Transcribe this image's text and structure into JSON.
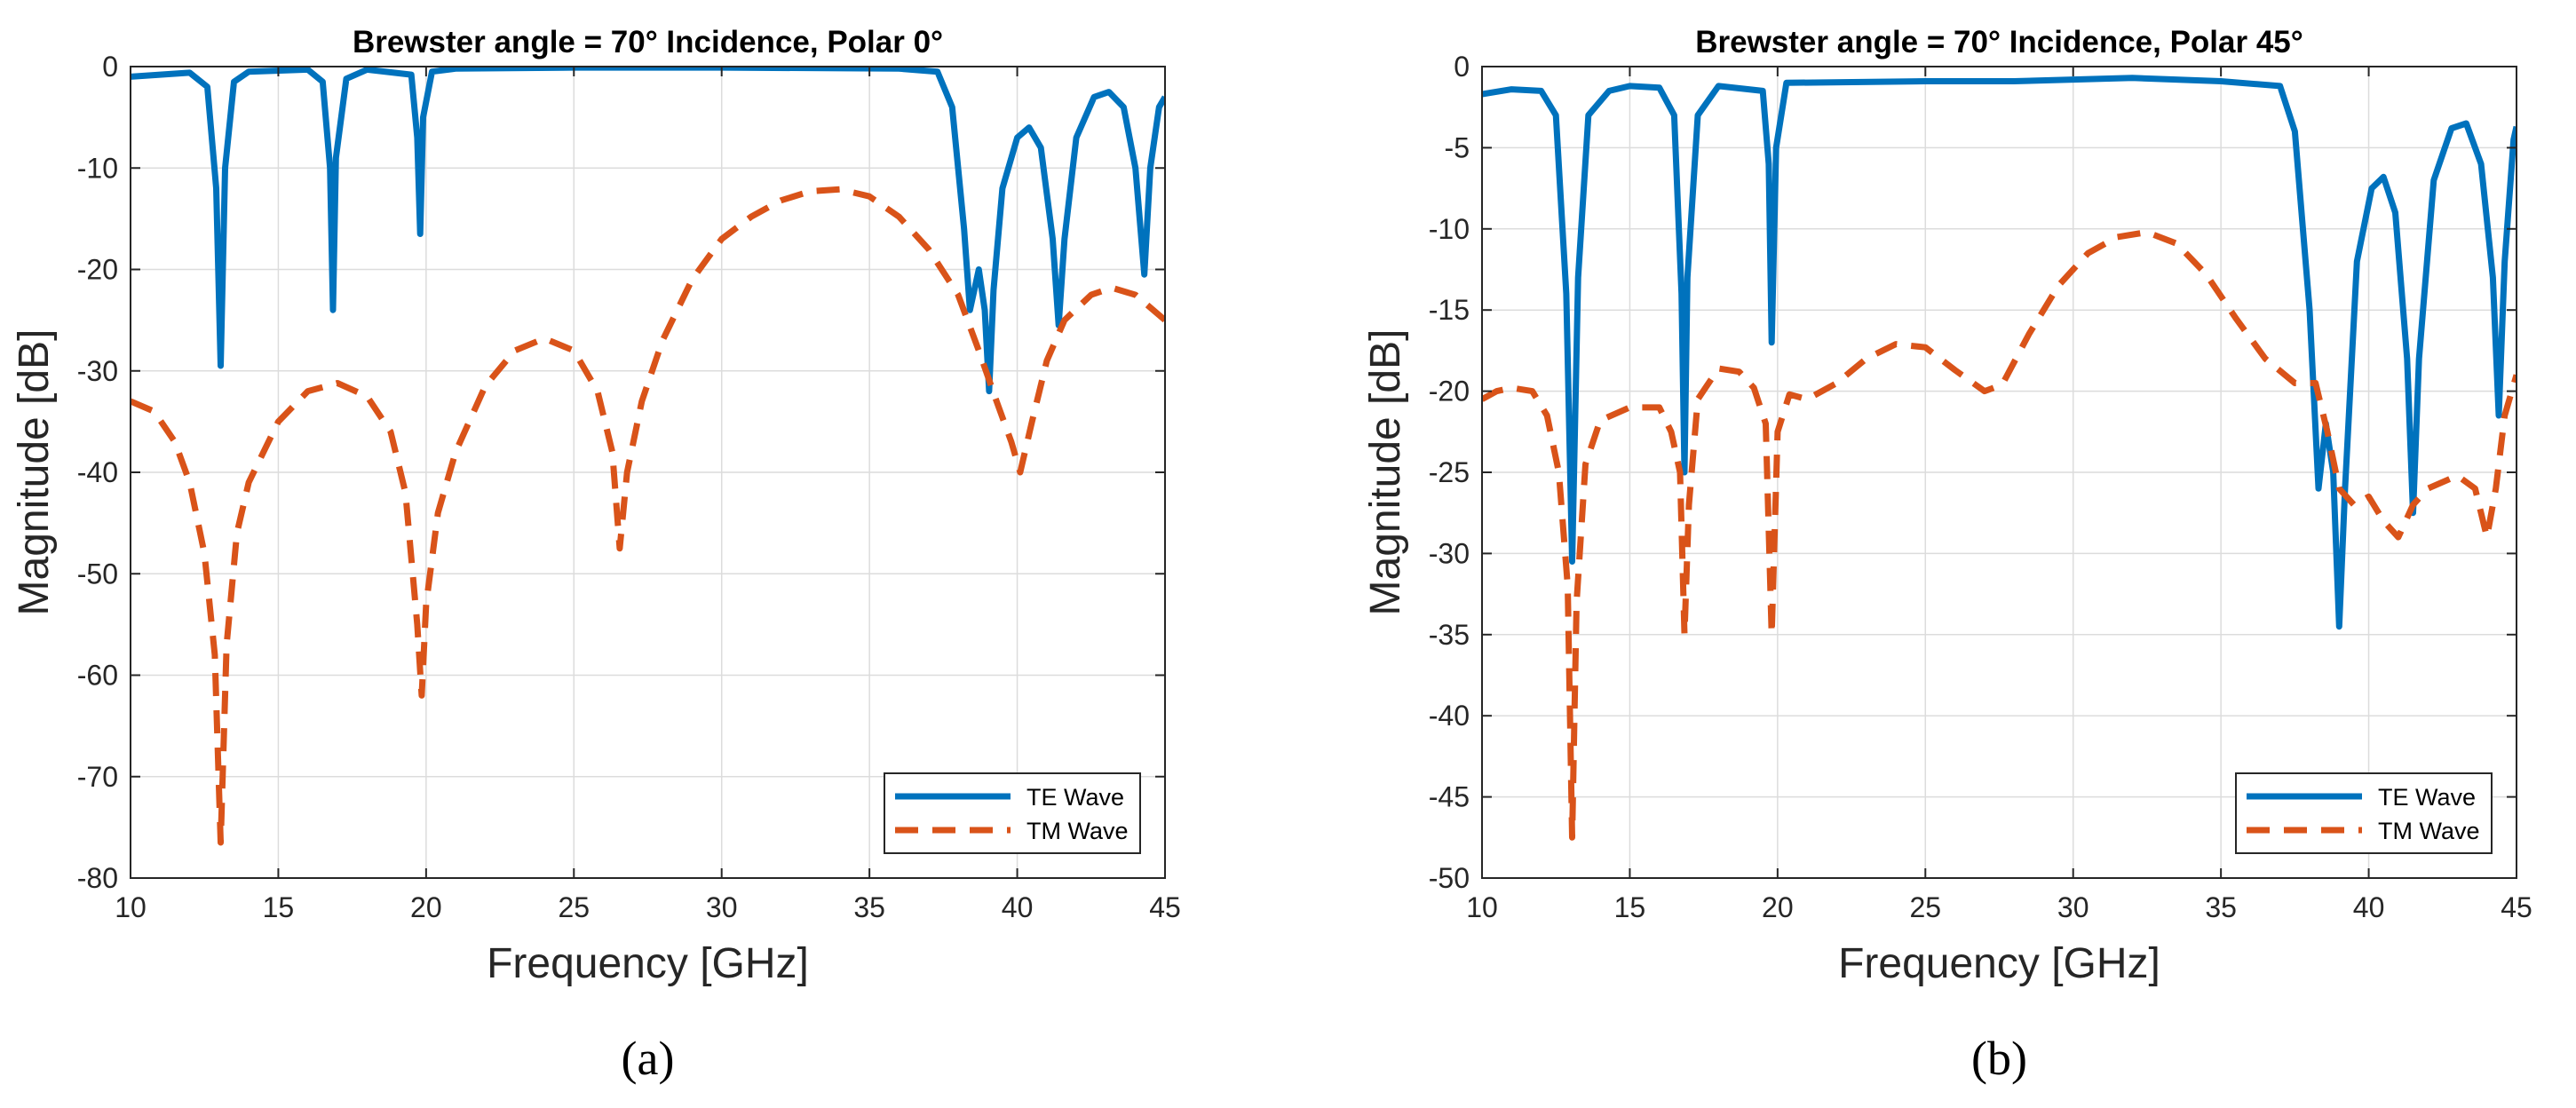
{
  "chart_data": [
    {
      "id": "a",
      "type": "line",
      "title": "Brewster angle = 70° Incidence, Polar 0°",
      "xlabel": "Frequency [GHz]",
      "ylabel": "Magnitude [dB]",
      "xlim": [
        10,
        45
      ],
      "ylim": [
        -80,
        0
      ],
      "xticks": [
        10,
        15,
        20,
        25,
        30,
        35,
        40,
        45
      ],
      "yticks": [
        -80,
        -70,
        -60,
        -50,
        -40,
        -30,
        -20,
        -10,
        0
      ],
      "grid": true,
      "legend_position": "bottom-right",
      "caption": "(a)",
      "series": [
        {
          "name": "TE Wave",
          "style": "solid",
          "color": "#0072BD",
          "points": [
            [
              10,
              -1
            ],
            [
              11,
              -0.8
            ],
            [
              12,
              -0.6
            ],
            [
              12.6,
              -2
            ],
            [
              12.9,
              -12
            ],
            [
              13.05,
              -29.5
            ],
            [
              13.2,
              -10
            ],
            [
              13.5,
              -1.5
            ],
            [
              14,
              -0.5
            ],
            [
              16,
              -0.3
            ],
            [
              16.5,
              -1.5
            ],
            [
              16.75,
              -10
            ],
            [
              16.85,
              -24
            ],
            [
              16.95,
              -9
            ],
            [
              17.3,
              -1.2
            ],
            [
              18,
              -0.3
            ],
            [
              19.5,
              -0.8
            ],
            [
              19.7,
              -7
            ],
            [
              19.8,
              -16.5
            ],
            [
              19.9,
              -5
            ],
            [
              20.2,
              -0.5
            ],
            [
              21,
              -0.2
            ],
            [
              25,
              -0.1
            ],
            [
              30,
              -0.1
            ],
            [
              36,
              -0.2
            ],
            [
              37.3,
              -0.5
            ],
            [
              37.8,
              -4
            ],
            [
              38.2,
              -16
            ],
            [
              38.4,
              -24
            ],
            [
              38.7,
              -20
            ],
            [
              38.9,
              -24
            ],
            [
              39.05,
              -32
            ],
            [
              39.2,
              -22
            ],
            [
              39.5,
              -12
            ],
            [
              40,
              -7
            ],
            [
              40.4,
              -6
            ],
            [
              40.8,
              -8
            ],
            [
              41.2,
              -17
            ],
            [
              41.4,
              -25.5
            ],
            [
              41.6,
              -17
            ],
            [
              42,
              -7
            ],
            [
              42.6,
              -3
            ],
            [
              43.1,
              -2.5
            ],
            [
              43.6,
              -4
            ],
            [
              44,
              -10
            ],
            [
              44.3,
              -20.5
            ],
            [
              44.5,
              -10
            ],
            [
              44.8,
              -4
            ],
            [
              45,
              -3
            ]
          ]
        },
        {
          "name": "TM Wave",
          "style": "dashed",
          "color": "#D95319",
          "points": [
            [
              10,
              -33
            ],
            [
              10.8,
              -34
            ],
            [
              11.5,
              -37
            ],
            [
              12,
              -41
            ],
            [
              12.5,
              -48
            ],
            [
              12.85,
              -58
            ],
            [
              13.05,
              -76.5
            ],
            [
              13.25,
              -57
            ],
            [
              13.6,
              -46
            ],
            [
              14,
              -41
            ],
            [
              15,
              -35
            ],
            [
              16,
              -32
            ],
            [
              17,
              -31.2
            ],
            [
              18,
              -32.5
            ],
            [
              18.8,
              -36
            ],
            [
              19.3,
              -42
            ],
            [
              19.7,
              -55
            ],
            [
              19.85,
              -62
            ],
            [
              20,
              -53
            ],
            [
              20.4,
              -44
            ],
            [
              21,
              -38
            ],
            [
              22,
              -31.5
            ],
            [
              23,
              -28
            ],
            [
              24,
              -26.8
            ],
            [
              25,
              -28
            ],
            [
              25.8,
              -32
            ],
            [
              26.3,
              -38
            ],
            [
              26.55,
              -47.5
            ],
            [
              26.8,
              -40
            ],
            [
              27.3,
              -33
            ],
            [
              28,
              -27
            ],
            [
              29,
              -21
            ],
            [
              30,
              -17
            ],
            [
              31,
              -14.8
            ],
            [
              32,
              -13.2
            ],
            [
              33,
              -12.3
            ],
            [
              34,
              -12.1
            ],
            [
              35,
              -12.8
            ],
            [
              36,
              -14.8
            ],
            [
              37,
              -18
            ],
            [
              38,
              -22.5
            ],
            [
              38.7,
              -28
            ],
            [
              39.3,
              -33
            ],
            [
              39.8,
              -37
            ],
            [
              40.1,
              -40
            ],
            [
              40.5,
              -35
            ],
            [
              41,
              -29
            ],
            [
              41.6,
              -25
            ],
            [
              42.5,
              -22.5
            ],
            [
              43.2,
              -21.8
            ],
            [
              44,
              -22.5
            ],
            [
              45,
              -25
            ]
          ]
        }
      ]
    },
    {
      "id": "b",
      "type": "line",
      "title": "Brewster angle = 70° Incidence, Polar 45°",
      "xlabel": "Frequency [GHz]",
      "ylabel": "Magnitude [dB]",
      "xlim": [
        10,
        45
      ],
      "ylim": [
        -50,
        0
      ],
      "xticks": [
        10,
        15,
        20,
        25,
        30,
        35,
        40,
        45
      ],
      "yticks": [
        -50,
        -45,
        -40,
        -35,
        -30,
        -25,
        -20,
        -15,
        -10,
        -5,
        0
      ],
      "grid": true,
      "legend_position": "bottom-right",
      "caption": "(b)",
      "series": [
        {
          "name": "TE Wave",
          "style": "solid",
          "color": "#0072BD",
          "points": [
            [
              10,
              -1.7
            ],
            [
              11,
              -1.4
            ],
            [
              12,
              -1.5
            ],
            [
              12.5,
              -3
            ],
            [
              12.85,
              -14
            ],
            [
              13.05,
              -30.5
            ],
            [
              13.25,
              -13
            ],
            [
              13.6,
              -3
            ],
            [
              14.3,
              -1.5
            ],
            [
              15,
              -1.2
            ],
            [
              16,
              -1.3
            ],
            [
              16.5,
              -3
            ],
            [
              16.75,
              -14
            ],
            [
              16.85,
              -25
            ],
            [
              16.95,
              -13
            ],
            [
              17.3,
              -3
            ],
            [
              18,
              -1.2
            ],
            [
              19.5,
              -1.5
            ],
            [
              19.7,
              -6
            ],
            [
              19.8,
              -17
            ],
            [
              19.95,
              -5
            ],
            [
              20.3,
              -1
            ],
            [
              25,
              -0.9
            ],
            [
              28,
              -0.9
            ],
            [
              32,
              -0.7
            ],
            [
              35,
              -0.9
            ],
            [
              37,
              -1.2
            ],
            [
              37.5,
              -4
            ],
            [
              38,
              -15
            ],
            [
              38.3,
              -26
            ],
            [
              38.55,
              -22
            ],
            [
              38.8,
              -25
            ],
            [
              39,
              -34.5
            ],
            [
              39.2,
              -26
            ],
            [
              39.6,
              -12
            ],
            [
              40.1,
              -7.5
            ],
            [
              40.5,
              -6.8
            ],
            [
              40.9,
              -9
            ],
            [
              41.3,
              -18
            ],
            [
              41.5,
              -27.5
            ],
            [
              41.7,
              -18
            ],
            [
              42.2,
              -7
            ],
            [
              42.8,
              -3.8
            ],
            [
              43.3,
              -3.5
            ],
            [
              43.8,
              -6
            ],
            [
              44.2,
              -13
            ],
            [
              44.4,
              -21.5
            ],
            [
              44.6,
              -12
            ],
            [
              44.9,
              -4.5
            ],
            [
              45,
              -3.7
            ]
          ]
        },
        {
          "name": "TM Wave",
          "style": "dashed",
          "color": "#D95319",
          "points": [
            [
              10,
              -20.5
            ],
            [
              10.5,
              -20
            ],
            [
              11,
              -19.8
            ],
            [
              11.7,
              -20
            ],
            [
              12.2,
              -21.5
            ],
            [
              12.6,
              -25
            ],
            [
              12.9,
              -32
            ],
            [
              13.05,
              -47.5
            ],
            [
              13.2,
              -33
            ],
            [
              13.5,
              -24.5
            ],
            [
              14,
              -21.8
            ],
            [
              15,
              -21
            ],
            [
              16,
              -21
            ],
            [
              16.4,
              -22.5
            ],
            [
              16.7,
              -25
            ],
            [
              16.85,
              -35
            ],
            [
              17,
              -27
            ],
            [
              17.3,
              -20.5
            ],
            [
              18,
              -18.6
            ],
            [
              18.7,
              -18.8
            ],
            [
              19.2,
              -19.8
            ],
            [
              19.6,
              -22
            ],
            [
              19.8,
              -35
            ],
            [
              20,
              -22.5
            ],
            [
              20.4,
              -20.2
            ],
            [
              21,
              -20.5
            ],
            [
              22,
              -19.5
            ],
            [
              23,
              -18
            ],
            [
              24,
              -17.1
            ],
            [
              25,
              -17.3
            ],
            [
              26,
              -18.7
            ],
            [
              27,
              -20
            ],
            [
              27.6,
              -19.6
            ],
            [
              28.5,
              -16.5
            ],
            [
              29.5,
              -13.5
            ],
            [
              30.5,
              -11.5
            ],
            [
              31.5,
              -10.5
            ],
            [
              32.5,
              -10.2
            ],
            [
              33.5,
              -10.9
            ],
            [
              34.5,
              -12.8
            ],
            [
              35.5,
              -15.5
            ],
            [
              36.5,
              -18
            ],
            [
              37.5,
              -19.5
            ],
            [
              38.2,
              -19.5
            ],
            [
              38.6,
              -22.5
            ],
            [
              39,
              -26
            ],
            [
              39.5,
              -27
            ],
            [
              40,
              -26.5
            ],
            [
              40.5,
              -28
            ],
            [
              41,
              -29
            ],
            [
              41.5,
              -27
            ],
            [
              42,
              -26
            ],
            [
              43,
              -25.2
            ],
            [
              43.6,
              -26
            ],
            [
              44,
              -29
            ],
            [
              44.3,
              -26
            ],
            [
              44.6,
              -21.5
            ],
            [
              45,
              -19
            ]
          ]
        }
      ]
    }
  ]
}
